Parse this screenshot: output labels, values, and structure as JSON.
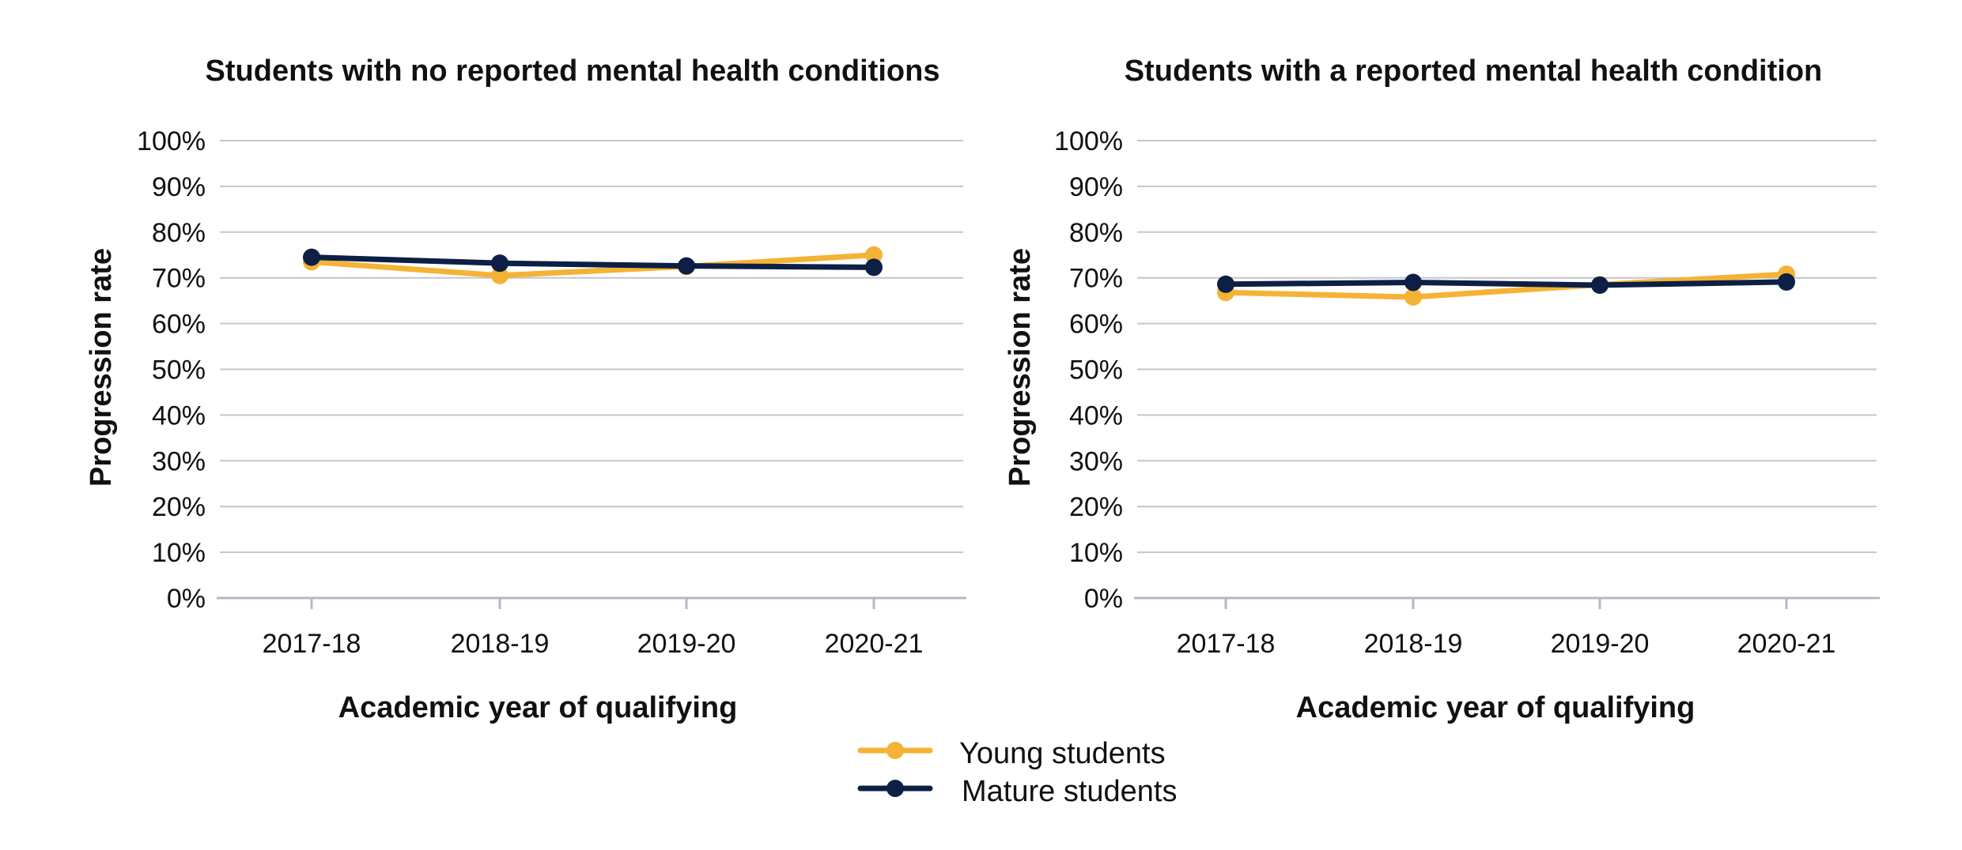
{
  "chart_data": [
    {
      "type": "line",
      "title": "Students with no reported mental health conditions",
      "xlabel": "Academic year of qualifying",
      "ylabel": "Progression rate",
      "categories": [
        "2017-18",
        "2018-19",
        "2019-20",
        "2020-21"
      ],
      "ylim": [
        0,
        100
      ],
      "yticks": [
        "0%",
        "10%",
        "20%",
        "30%",
        "40%",
        "50%",
        "60%",
        "70%",
        "80%",
        "90%",
        "100%"
      ],
      "grid": true,
      "series": [
        {
          "name": "Young students",
          "color": "#f5b335",
          "values": [
            73.5,
            70.5,
            72.5,
            75.0
          ]
        },
        {
          "name": "Mature students",
          "color": "#0d1f45",
          "values": [
            74.5,
            73.2,
            72.6,
            72.3
          ]
        }
      ]
    },
    {
      "type": "line",
      "title": "Students with a reported mental health condition",
      "xlabel": "Academic year of qualifying",
      "ylabel": "Progression rate",
      "categories": [
        "2017-18",
        "2018-19",
        "2019-20",
        "2020-21"
      ],
      "ylim": [
        0,
        100
      ],
      "yticks": [
        "0%",
        "10%",
        "20%",
        "30%",
        "40%",
        "50%",
        "60%",
        "70%",
        "80%",
        "90%",
        "100%"
      ],
      "grid": true,
      "series": [
        {
          "name": "Young students",
          "color": "#f5b335",
          "values": [
            66.8,
            65.8,
            68.5,
            70.8
          ]
        },
        {
          "name": "Mature students",
          "color": "#0d1f45",
          "values": [
            68.6,
            69.0,
            68.4,
            69.1
          ]
        }
      ]
    }
  ],
  "legend": {
    "placement": "bottom-center",
    "items": [
      {
        "label": "Young students",
        "color": "#f5b335"
      },
      {
        "label": "Mature students",
        "color": "#0d1f45"
      }
    ]
  }
}
